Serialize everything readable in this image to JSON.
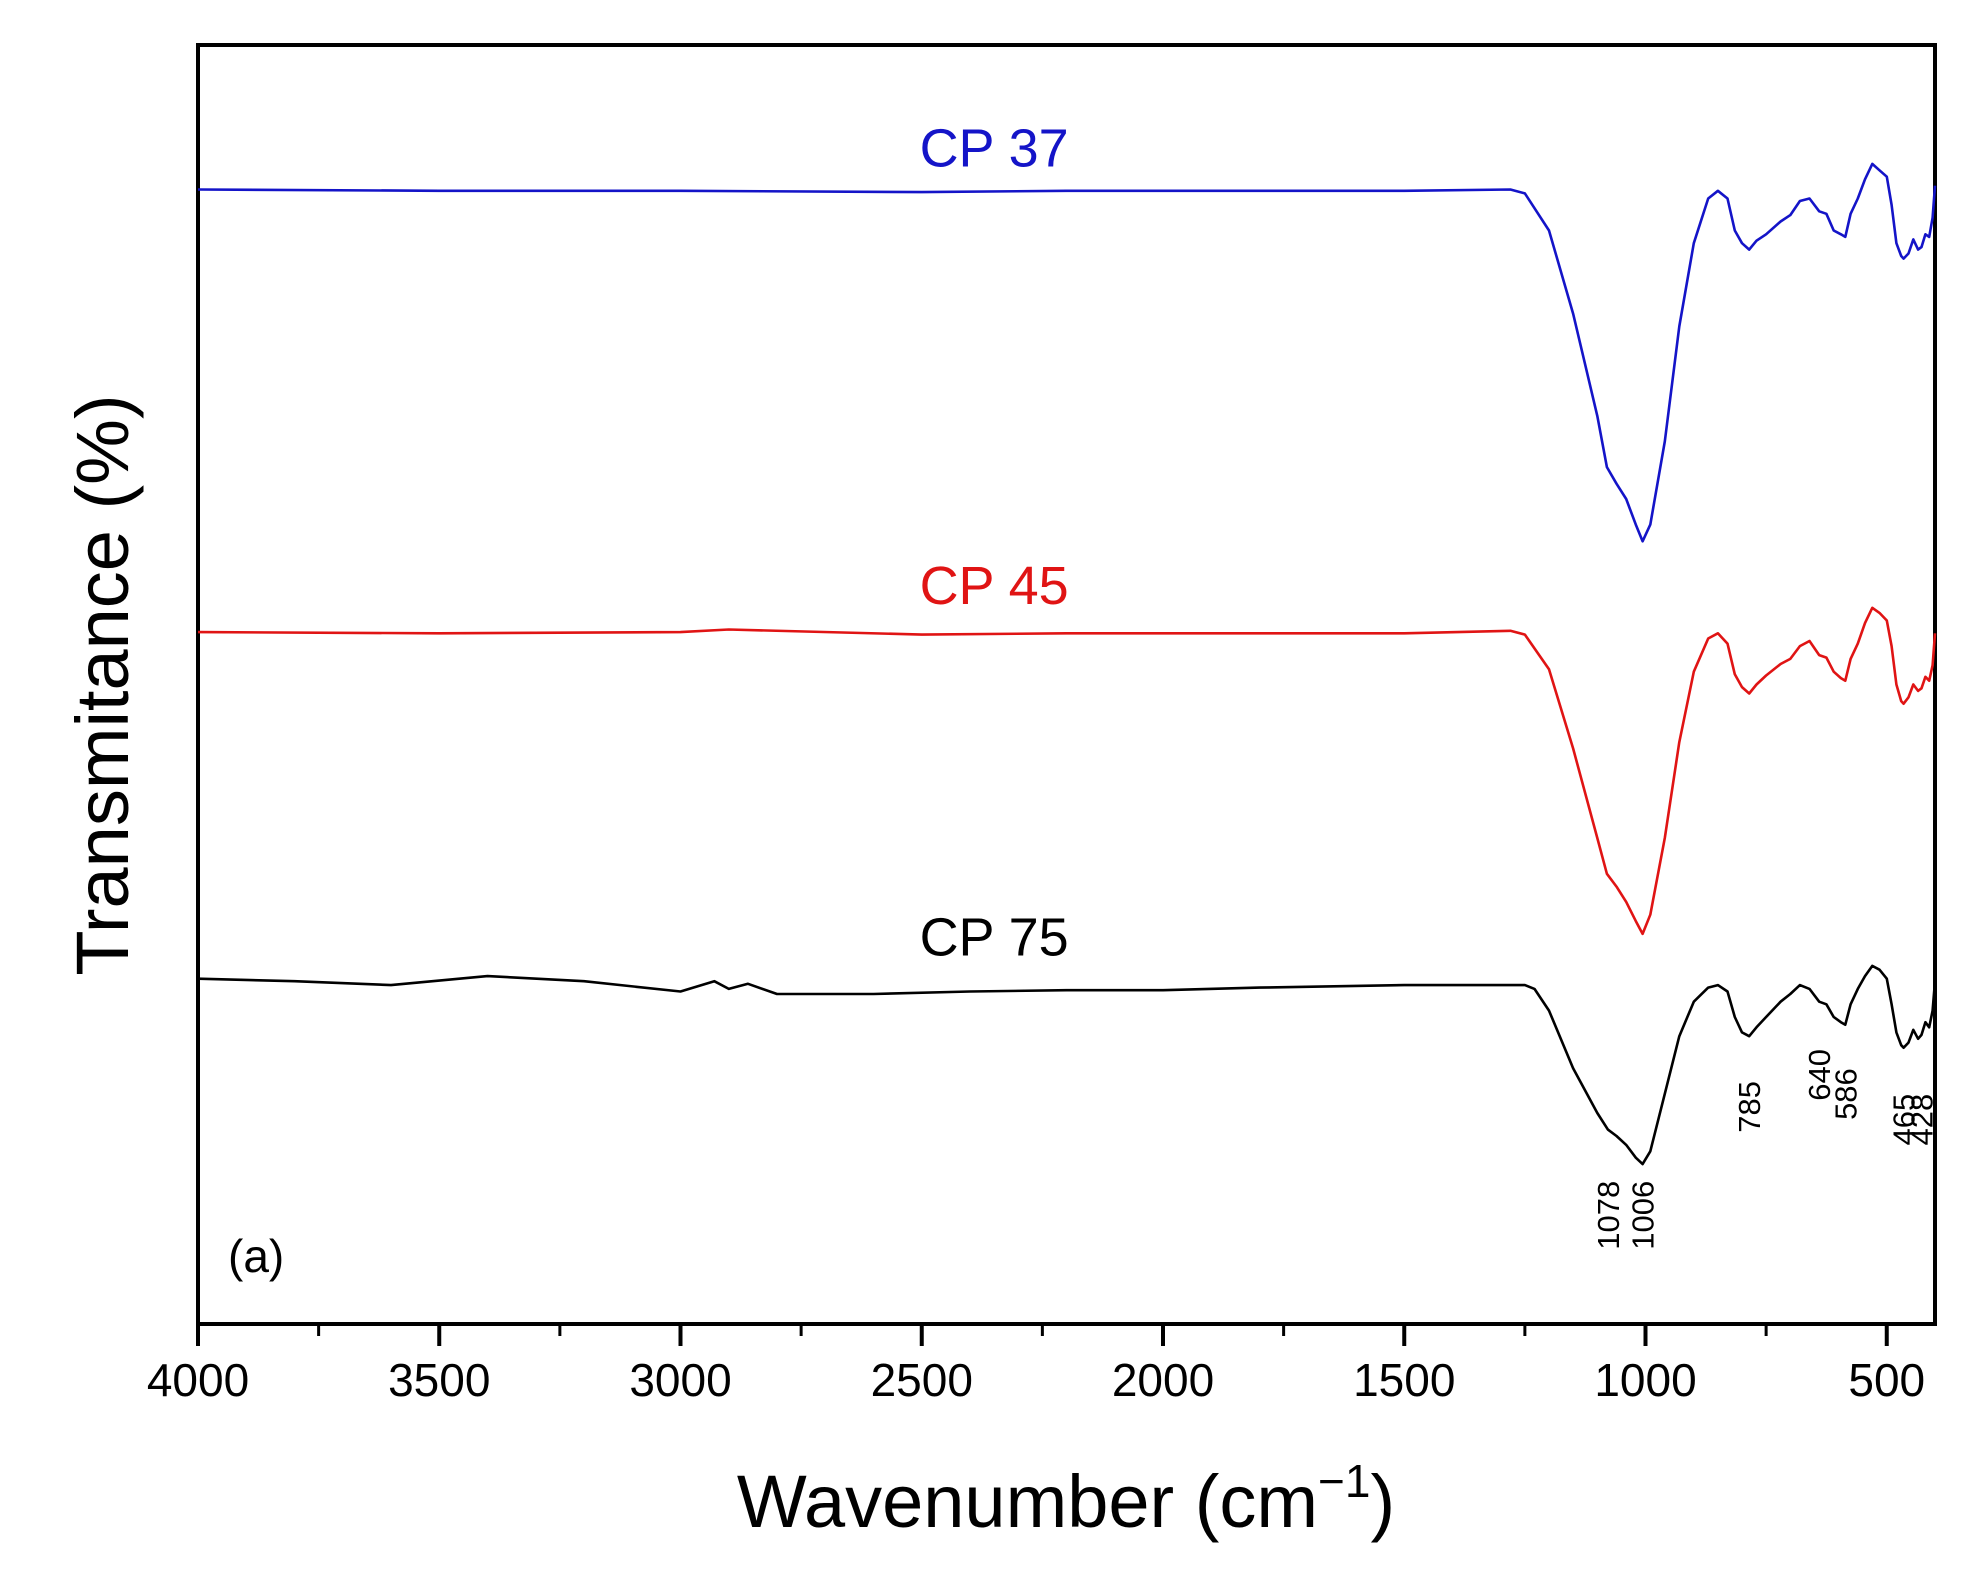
{
  "chart_data": {
    "type": "line",
    "title": "",
    "panel_label": "(a)",
    "xlabel": "Wavenumber (cm",
    "xlabel_sup": "−1",
    "xlabel_close": ")",
    "ylabel": "Transmitance (%)",
    "xlim": [
      4000,
      400
    ],
    "ylim": [
      0,
      1
    ],
    "x_reversed": true,
    "grid": false,
    "x_ticks": [
      {
        "value": 4000,
        "label": "4000"
      },
      {
        "value": 3500,
        "label": "3500"
      },
      {
        "value": 3000,
        "label": "3000"
      },
      {
        "value": 2500,
        "label": "2500"
      },
      {
        "value": 2000,
        "label": "2000"
      },
      {
        "value": 1500,
        "label": "1500"
      },
      {
        "value": 1000,
        "label": "1000"
      },
      {
        "value": 500,
        "label": "500"
      }
    ],
    "x_minor_ticks": [
      3750,
      3250,
      2750,
      2250,
      1750,
      1250,
      750
    ],
    "series": [
      {
        "name": "CP 37",
        "color": "#1414c8",
        "points": [
          [
            4000,
            0.887
          ],
          [
            3500,
            0.886
          ],
          [
            3000,
            0.886
          ],
          [
            2500,
            0.885
          ],
          [
            2200,
            0.886
          ],
          [
            2000,
            0.886
          ],
          [
            1500,
            0.886
          ],
          [
            1280,
            0.887
          ],
          [
            1250,
            0.884
          ],
          [
            1200,
            0.855
          ],
          [
            1150,
            0.79
          ],
          [
            1100,
            0.71
          ],
          [
            1080,
            0.67
          ],
          [
            1060,
            0.657
          ],
          [
            1040,
            0.645
          ],
          [
            1020,
            0.625
          ],
          [
            1006,
            0.612
          ],
          [
            990,
            0.625
          ],
          [
            960,
            0.69
          ],
          [
            930,
            0.78
          ],
          [
            900,
            0.845
          ],
          [
            870,
            0.88
          ],
          [
            850,
            0.886
          ],
          [
            830,
            0.88
          ],
          [
            815,
            0.855
          ],
          [
            800,
            0.845
          ],
          [
            785,
            0.84
          ],
          [
            770,
            0.847
          ],
          [
            750,
            0.852
          ],
          [
            720,
            0.862
          ],
          [
            700,
            0.867
          ],
          [
            680,
            0.878
          ],
          [
            660,
            0.88
          ],
          [
            640,
            0.87
          ],
          [
            625,
            0.868
          ],
          [
            610,
            0.855
          ],
          [
            595,
            0.852
          ],
          [
            586,
            0.85
          ],
          [
            575,
            0.868
          ],
          [
            560,
            0.88
          ],
          [
            545,
            0.895
          ],
          [
            530,
            0.907
          ],
          [
            515,
            0.902
          ],
          [
            500,
            0.897
          ],
          [
            490,
            0.875
          ],
          [
            480,
            0.845
          ],
          [
            470,
            0.835
          ],
          [
            465,
            0.833
          ],
          [
            455,
            0.837
          ],
          [
            445,
            0.848
          ],
          [
            435,
            0.84
          ],
          [
            428,
            0.842
          ],
          [
            420,
            0.852
          ],
          [
            412,
            0.85
          ],
          [
            405,
            0.865
          ],
          [
            400,
            0.89
          ]
        ]
      },
      {
        "name": "CP 45",
        "color": "#e01414",
        "points": [
          [
            4000,
            0.541
          ],
          [
            3500,
            0.54
          ],
          [
            3000,
            0.541
          ],
          [
            2900,
            0.543
          ],
          [
            2500,
            0.539
          ],
          [
            2200,
            0.54
          ],
          [
            2000,
            0.54
          ],
          [
            1500,
            0.54
          ],
          [
            1280,
            0.542
          ],
          [
            1250,
            0.539
          ],
          [
            1200,
            0.512
          ],
          [
            1150,
            0.45
          ],
          [
            1100,
            0.38
          ],
          [
            1080,
            0.352
          ],
          [
            1060,
            0.342
          ],
          [
            1040,
            0.33
          ],
          [
            1020,
            0.315
          ],
          [
            1006,
            0.305
          ],
          [
            990,
            0.32
          ],
          [
            960,
            0.38
          ],
          [
            930,
            0.455
          ],
          [
            900,
            0.51
          ],
          [
            870,
            0.536
          ],
          [
            850,
            0.54
          ],
          [
            830,
            0.532
          ],
          [
            815,
            0.508
          ],
          [
            800,
            0.498
          ],
          [
            785,
            0.493
          ],
          [
            770,
            0.5
          ],
          [
            750,
            0.507
          ],
          [
            720,
            0.516
          ],
          [
            700,
            0.52
          ],
          [
            680,
            0.53
          ],
          [
            660,
            0.534
          ],
          [
            640,
            0.523
          ],
          [
            625,
            0.521
          ],
          [
            610,
            0.51
          ],
          [
            595,
            0.505
          ],
          [
            586,
            0.503
          ],
          [
            575,
            0.52
          ],
          [
            560,
            0.532
          ],
          [
            545,
            0.548
          ],
          [
            530,
            0.56
          ],
          [
            515,
            0.556
          ],
          [
            500,
            0.55
          ],
          [
            490,
            0.53
          ],
          [
            480,
            0.5
          ],
          [
            470,
            0.487
          ],
          [
            465,
            0.485
          ],
          [
            455,
            0.49
          ],
          [
            445,
            0.5
          ],
          [
            435,
            0.495
          ],
          [
            428,
            0.497
          ],
          [
            420,
            0.506
          ],
          [
            412,
            0.503
          ],
          [
            405,
            0.515
          ],
          [
            400,
            0.54
          ]
        ]
      },
      {
        "name": "CP 75",
        "color": "#000000",
        "points": [
          [
            4000,
            0.27
          ],
          [
            3800,
            0.268
          ],
          [
            3600,
            0.265
          ],
          [
            3400,
            0.272
          ],
          [
            3200,
            0.268
          ],
          [
            3000,
            0.26
          ],
          [
            2930,
            0.268
          ],
          [
            2900,
            0.262
          ],
          [
            2860,
            0.266
          ],
          [
            2800,
            0.258
          ],
          [
            2600,
            0.258
          ],
          [
            2400,
            0.26
          ],
          [
            2200,
            0.261
          ],
          [
            2000,
            0.261
          ],
          [
            1800,
            0.263
          ],
          [
            1500,
            0.265
          ],
          [
            1250,
            0.265
          ],
          [
            1230,
            0.262
          ],
          [
            1200,
            0.245
          ],
          [
            1150,
            0.2
          ],
          [
            1100,
            0.165
          ],
          [
            1078,
            0.152
          ],
          [
            1060,
            0.147
          ],
          [
            1040,
            0.14
          ],
          [
            1020,
            0.13
          ],
          [
            1006,
            0.125
          ],
          [
            990,
            0.135
          ],
          [
            960,
            0.18
          ],
          [
            930,
            0.225
          ],
          [
            900,
            0.252
          ],
          [
            870,
            0.263
          ],
          [
            850,
            0.265
          ],
          [
            830,
            0.26
          ],
          [
            815,
            0.24
          ],
          [
            800,
            0.228
          ],
          [
            785,
            0.225
          ],
          [
            770,
            0.232
          ],
          [
            750,
            0.24
          ],
          [
            720,
            0.252
          ],
          [
            700,
            0.258
          ],
          [
            680,
            0.265
          ],
          [
            660,
            0.262
          ],
          [
            640,
            0.252
          ],
          [
            625,
            0.25
          ],
          [
            610,
            0.24
          ],
          [
            595,
            0.236
          ],
          [
            586,
            0.234
          ],
          [
            575,
            0.25
          ],
          [
            560,
            0.262
          ],
          [
            545,
            0.272
          ],
          [
            530,
            0.28
          ],
          [
            515,
            0.277
          ],
          [
            500,
            0.27
          ],
          [
            490,
            0.25
          ],
          [
            480,
            0.228
          ],
          [
            470,
            0.218
          ],
          [
            465,
            0.216
          ],
          [
            455,
            0.22
          ],
          [
            445,
            0.23
          ],
          [
            435,
            0.223
          ],
          [
            428,
            0.226
          ],
          [
            420,
            0.236
          ],
          [
            412,
            0.232
          ],
          [
            405,
            0.245
          ],
          [
            400,
            0.268
          ]
        ]
      }
    ],
    "series_labels": [
      {
        "text": "CP 37",
        "x": 2350,
        "y": 0.905,
        "color": "#1414c8"
      },
      {
        "text": "CP 45",
        "x": 2350,
        "y": 0.563,
        "color": "#e01414"
      },
      {
        "text": "CP 75",
        "x": 2350,
        "y": 0.288,
        "color": "#000000"
      }
    ],
    "peak_labels": [
      {
        "text": "1078",
        "x": 1078,
        "y": 0.112
      },
      {
        "text": "1006",
        "x": 1006,
        "y": 0.112
      },
      {
        "text": "785",
        "x": 785,
        "y": 0.19
      },
      {
        "text": "640",
        "x": 640,
        "y": 0.215
      },
      {
        "text": "586",
        "x": 586,
        "y": 0.2
      },
      {
        "text": "465",
        "x": 465,
        "y": 0.18
      },
      {
        "text": "428",
        "x": 428,
        "y": 0.18
      }
    ]
  }
}
